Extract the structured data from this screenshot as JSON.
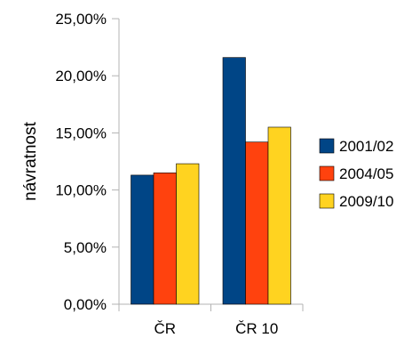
{
  "chart_data": {
    "type": "bar",
    "categories": [
      "ČR",
      "ČR 10"
    ],
    "series": [
      {
        "name": "2001/02",
        "values": [
          11.3,
          21.6
        ],
        "color": "#004586"
      },
      {
        "name": "2004/05",
        "values": [
          11.5,
          14.2
        ],
        "color": "#ff420e"
      },
      {
        "name": "2009/10",
        "values": [
          12.3,
          15.5
        ],
        "color": "#ffd320"
      }
    ],
    "ylabel": "návratnost",
    "ylim": [
      0,
      25
    ],
    "yticks": [
      0,
      5,
      10,
      15,
      20,
      25
    ],
    "ytick_labels": [
      "0,00%",
      "5,00%",
      "10,00%",
      "15,00%",
      "20,00%",
      "25,00%"
    ],
    "grid": false,
    "legend_position": "right"
  }
}
